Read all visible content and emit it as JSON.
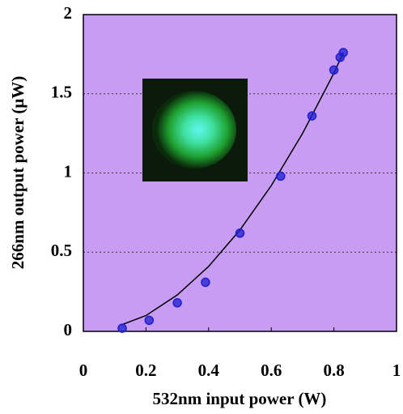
{
  "chart_data": {
    "type": "scatter",
    "x_label": "532nm input power (W)",
    "y_label": "266nm output power (μW)",
    "series": [
      {
        "color": "#1f1fd0",
        "x": [
          0.124,
          0.21,
          0.3,
          0.39,
          0.5,
          0.63,
          0.73,
          0.8,
          0.82,
          0.83
        ],
        "values": [
          0.02,
          0.07,
          0.18,
          0.31,
          0.62,
          0.98,
          1.36,
          1.65,
          1.73,
          1.76
        ]
      }
    ],
    "fit": {
      "color": "#000000",
      "x": [
        0.12,
        0.2,
        0.3,
        0.4,
        0.5,
        0.6,
        0.7,
        0.8,
        0.83
      ],
      "values": [
        0.04,
        0.1,
        0.23,
        0.41,
        0.64,
        0.92,
        1.25,
        1.63,
        1.76
      ]
    },
    "xlim": [
      0,
      1
    ],
    "xticks": [
      0,
      0.2,
      0.4,
      0.6,
      0.8,
      1
    ],
    "ylim": [
      0,
      2
    ],
    "yticks": [
      0,
      0.5,
      1,
      1.5,
      2
    ],
    "grid": true,
    "background": "#c79cf2"
  }
}
